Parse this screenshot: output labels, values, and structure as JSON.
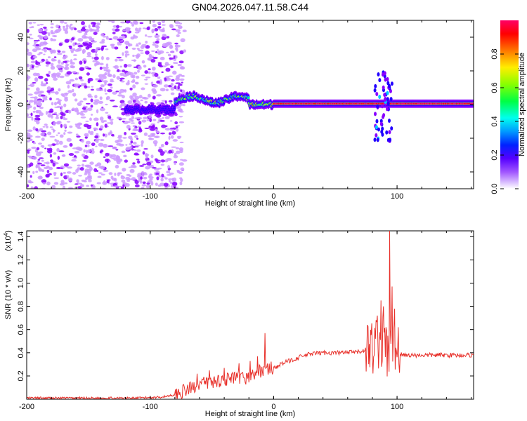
{
  "title": "GN04.2026.047.11.58.C44",
  "chart_data": [
    {
      "type": "heatmap",
      "xlabel": "Height of straight line (km)",
      "ylabel": "Frequency (Hz)",
      "xlim": [
        -200,
        162
      ],
      "ylim": [
        -50,
        50
      ],
      "x_ticks": [
        -200,
        -100,
        0,
        100
      ],
      "y_ticks": [
        -40,
        -20,
        0,
        20,
        40
      ],
      "colorbar": {
        "label": "Normalized spectral amplitude",
        "range": [
          0,
          1
        ],
        "ticks": [
          0.0,
          0.2,
          0.4,
          0.6,
          0.8
        ],
        "colors": [
          "#ffffff",
          "#cc99ff",
          "#8800ff",
          "#2200ff",
          "#00ccff",
          "#00ff66",
          "#88ff00",
          "#ffdd00",
          "#ff6600",
          "#ff0000",
          "#ff0066"
        ]
      },
      "features": {
        "noise_region_x": [
          -200,
          -80
        ],
        "main_band_frequency": 0,
        "main_band_x": [
          -120,
          162
        ],
        "strong_band_x": [
          0,
          162
        ],
        "burst_x": 88,
        "burst_frequency_range": [
          -22,
          20
        ]
      }
    },
    {
      "type": "line",
      "xlabel": "Height of straight line (km)",
      "ylabel": "SNR (10 * v/v)",
      "yscale_label": "(x10^4)",
      "xlim": [
        -200,
        162
      ],
      "ylim": [
        0,
        1.45
      ],
      "x_ticks": [
        -200,
        -100,
        0,
        100
      ],
      "y_ticks": [
        0.2,
        0.4,
        0.6,
        0.8,
        1.0,
        1.2,
        1.4
      ],
      "color": "#e8302a",
      "envelope": {
        "x": [
          -200,
          -110,
          -90,
          -80,
          -70,
          -60,
          -50,
          -40,
          -30,
          -20,
          -15,
          -10,
          -5,
          0,
          10,
          20,
          30,
          40,
          50,
          60,
          70,
          80,
          85,
          88,
          90,
          92,
          94,
          96,
          98,
          100,
          105,
          110,
          120,
          130,
          140,
          150,
          162
        ],
        "y": [
          0.01,
          0.01,
          0.02,
          0.04,
          0.08,
          0.13,
          0.15,
          0.17,
          0.18,
          0.19,
          0.22,
          0.25,
          0.26,
          0.27,
          0.32,
          0.36,
          0.39,
          0.4,
          0.4,
          0.4,
          0.41,
          0.45,
          0.5,
          0.48,
          0.42,
          0.4,
          0.4,
          0.45,
          0.42,
          0.4,
          0.38,
          0.38,
          0.38,
          0.38,
          0.38,
          0.38,
          0.38
        ]
      },
      "peaks": [
        {
          "x": -62,
          "y": 0.22
        },
        {
          "x": -52,
          "y": 0.25
        },
        {
          "x": -40,
          "y": 0.27
        },
        {
          "x": -28,
          "y": 0.31
        },
        {
          "x": -19,
          "y": 0.33
        },
        {
          "x": -13,
          "y": 0.37
        },
        {
          "x": -7,
          "y": 0.57
        },
        {
          "x": 84,
          "y": 0.72
        },
        {
          "x": 87,
          "y": 0.85
        },
        {
          "x": 89,
          "y": 0.8
        },
        {
          "x": 91,
          "y": 0.62
        },
        {
          "x": 94,
          "y": 1.45
        },
        {
          "x": 96,
          "y": 0.97
        },
        {
          "x": 98,
          "y": 0.78
        },
        {
          "x": 101,
          "y": 0.62
        }
      ]
    }
  ]
}
